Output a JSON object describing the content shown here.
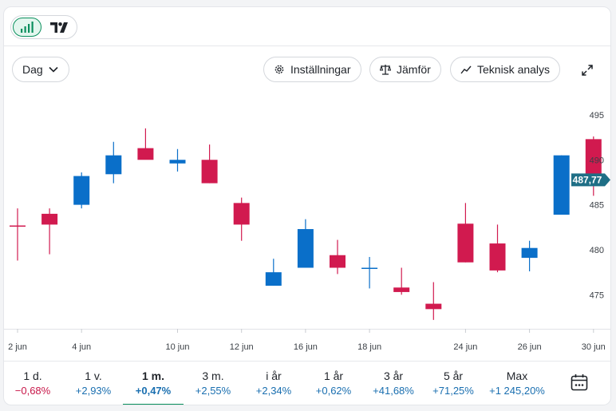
{
  "header": {
    "chart_type_icons": [
      "bar-chart-icon",
      "tradingview-logo-icon"
    ]
  },
  "toolbar": {
    "interval_label": "Dag",
    "settings_label": "Inställningar",
    "compare_label": "Jämför",
    "technical_label": "Teknisk analys"
  },
  "colors": {
    "up": "#0a6fc9",
    "down": "#d11a4f",
    "accent": "#0a8f5d",
    "price_tag": "#1f6f86"
  },
  "chart_data": {
    "type": "candlestick",
    "x_tick_labels": [
      "2 jun",
      "4 jun",
      "10 jun",
      "12 jun",
      "16 jun",
      "18 jun",
      "24 jun",
      "26 jun",
      "30 jun"
    ],
    "y_ticks": [
      475,
      480,
      485,
      490,
      495
    ],
    "ylim": [
      471.3,
      498.1
    ],
    "last_price": 487.77,
    "last_price_label": "487,77",
    "candles": [
      {
        "date": "2 jun",
        "open": 482.7,
        "high": 484.6,
        "low": 478.8,
        "close": 482.6
      },
      {
        "date": "3 jun",
        "open": 484.0,
        "high": 484.6,
        "low": 479.5,
        "close": 482.8
      },
      {
        "date": "4 jun",
        "open": 485.0,
        "high": 488.6,
        "low": 484.6,
        "close": 488.2
      },
      {
        "date": "5 jun",
        "open": 488.4,
        "high": 492.0,
        "low": 487.4,
        "close": 490.5
      },
      {
        "date": "6 jun",
        "open": 491.3,
        "high": 493.5,
        "low": 490.1,
        "close": 490.0
      },
      {
        "date": "9 jun",
        "open": 489.6,
        "high": 491.2,
        "low": 488.7,
        "close": 490.0
      },
      {
        "date": "10 jun",
        "open": 490.0,
        "high": 491.7,
        "low": 487.4,
        "close": 487.4
      },
      {
        "date": "11 jun",
        "open": 485.2,
        "high": 485.8,
        "low": 481.0,
        "close": 482.8
      },
      {
        "date": "12 jun",
        "open": 476.0,
        "high": 479.0,
        "low": 476.0,
        "close": 477.5
      },
      {
        "date": "13 jun",
        "open": 478.0,
        "high": 483.4,
        "low": 478.0,
        "close": 482.3
      },
      {
        "date": "16 jun",
        "open": 479.4,
        "high": 481.1,
        "low": 477.3,
        "close": 478.0
      },
      {
        "date": "17 jun",
        "open": 478.0,
        "high": 479.2,
        "low": 475.7,
        "close": 478.0
      },
      {
        "date": "18 jun",
        "open": 475.8,
        "high": 478.0,
        "low": 475.0,
        "close": 475.3
      },
      {
        "date": "19 jun",
        "open": 474.0,
        "high": 476.4,
        "low": 472.2,
        "close": 473.4
      },
      {
        "date": "20 jun",
        "open": 482.9,
        "high": 485.2,
        "low": 478.6,
        "close": 478.6
      },
      {
        "date": "23 jun",
        "open": 480.7,
        "high": 482.8,
        "low": 477.5,
        "close": 477.7
      },
      {
        "date": "24 jun",
        "open": 479.1,
        "high": 481.0,
        "low": 477.6,
        "close": 480.2
      },
      {
        "date": "25 jun",
        "open": 483.9,
        "high": 490.5,
        "low": 483.9,
        "close": 490.5
      },
      {
        "date": "26 jun",
        "open": 492.3,
        "high": 492.6,
        "low": 486.0,
        "close": 487.8
      }
    ]
  },
  "periods": [
    {
      "label": "1 d.",
      "change": "−0,68%",
      "dir": "neg"
    },
    {
      "label": "1 v.",
      "change": "+2,93%",
      "dir": "pos"
    },
    {
      "label": "1 m.",
      "change": "+0,47%",
      "dir": "pos",
      "active": true
    },
    {
      "label": "3 m.",
      "change": "+2,55%",
      "dir": "pos"
    },
    {
      "label": "i år",
      "change": "+2,34%",
      "dir": "pos"
    },
    {
      "label": "1 år",
      "change": "+0,62%",
      "dir": "pos"
    },
    {
      "label": "3 år",
      "change": "+41,68%",
      "dir": "pos"
    },
    {
      "label": "5 år",
      "change": "+71,25%",
      "dir": "pos"
    },
    {
      "label": "Max",
      "change": "+1 245,20%",
      "dir": "pos"
    }
  ],
  "calendar_icon": "calendar-icon"
}
